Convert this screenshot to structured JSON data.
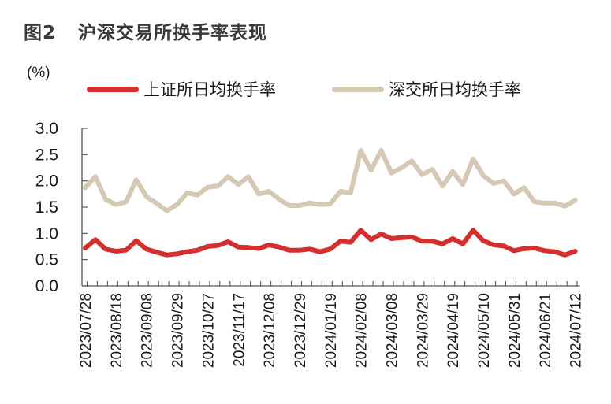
{
  "title": {
    "figure_no": "图2",
    "text": "沪深交易所换手率表现"
  },
  "unit_label": "(%)",
  "legend": [
    {
      "label": "上证所日均换手率",
      "color": "#d32f2f"
    },
    {
      "label": "深交所日均换手率",
      "color": "#d5c9b5"
    }
  ],
  "chart_data": {
    "type": "line",
    "title": "沪深交易所换手率表现",
    "xlabel": "",
    "ylabel": "(%)",
    "ylim": [
      0,
      3.0
    ],
    "yticks": [
      0.0,
      0.5,
      1.0,
      1.5,
      2.0,
      2.5,
      3.0
    ],
    "ytick_labels": [
      "0.0",
      "0.5",
      "1.0",
      "1.5",
      "2.0",
      "2.5",
      "3.0"
    ],
    "grid": false,
    "legend_position": "top",
    "x_tick_labels": [
      "2023/07/28",
      "2023/08/18",
      "2023/09/08",
      "2023/09/29",
      "2023/10/27",
      "2023/11/17",
      "2023/12/08",
      "2023/12/29",
      "2024/01/19",
      "2024/02/08",
      "2024/03/08",
      "2024/03/29",
      "2024/04/19",
      "2024/05/10",
      "2024/05/31",
      "2024/06/21",
      "2024/07/12"
    ],
    "x_tick_label_every": 3,
    "point_count": 49,
    "series": [
      {
        "name": "上证所日均换手率",
        "color": "#d32f2f",
        "values": [
          0.72,
          0.88,
          0.7,
          0.66,
          0.68,
          0.86,
          0.7,
          0.64,
          0.59,
          0.61,
          0.65,
          0.68,
          0.75,
          0.77,
          0.84,
          0.74,
          0.73,
          0.71,
          0.78,
          0.74,
          0.68,
          0.68,
          0.7,
          0.65,
          0.7,
          0.85,
          0.83,
          1.06,
          0.88,
          0.99,
          0.9,
          0.92,
          0.93,
          0.85,
          0.85,
          0.8,
          0.9,
          0.8,
          1.06,
          0.86,
          0.78,
          0.76,
          0.67,
          0.71,
          0.72,
          0.67,
          0.65,
          0.59,
          0.66
        ]
      },
      {
        "name": "深交所日均换手率",
        "color": "#d5c9b5",
        "values": [
          1.87,
          2.08,
          1.65,
          1.55,
          1.6,
          2.02,
          1.7,
          1.57,
          1.43,
          1.55,
          1.77,
          1.73,
          1.88,
          1.9,
          2.08,
          1.93,
          2.08,
          1.75,
          1.8,
          1.65,
          1.53,
          1.53,
          1.58,
          1.55,
          1.56,
          1.8,
          1.77,
          2.58,
          2.2,
          2.58,
          2.15,
          2.25,
          2.38,
          2.12,
          2.22,
          1.9,
          2.18,
          1.93,
          2.42,
          2.1,
          1.95,
          2.0,
          1.75,
          1.87,
          1.6,
          1.58,
          1.58,
          1.52,
          1.63
        ]
      }
    ]
  }
}
